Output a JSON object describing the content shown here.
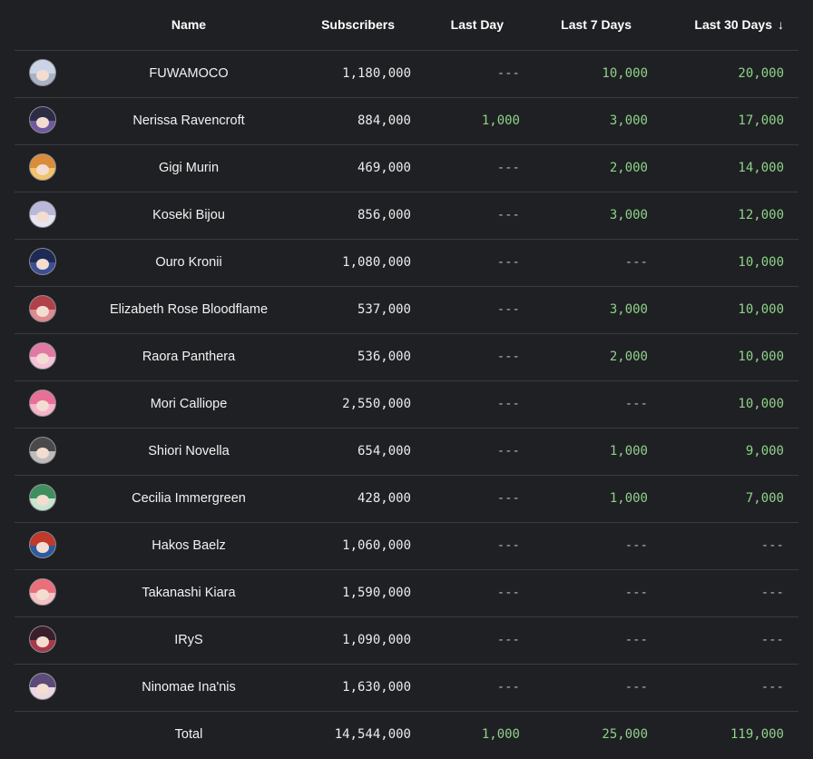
{
  "header": {
    "name": "Name",
    "subscribers": "Subscribers",
    "last_day": "Last Day",
    "last_7_days": "Last 7 Days",
    "last_30_days": "Last 30 Days",
    "sort_icon": "arrow-down-icon"
  },
  "colors": {
    "background": "#1f2023",
    "positive": "#8fd18b",
    "divider": "#3a3b3f"
  },
  "rows": [
    {
      "name": "FUWAMOCO",
      "subscribers": "1,180,000",
      "last_day": "---",
      "last_7_days": "10,000",
      "last_30_days": "20,000"
    },
    {
      "name": "Nerissa Ravencroft",
      "subscribers": "884,000",
      "last_day": "1,000",
      "last_7_days": "3,000",
      "last_30_days": "17,000"
    },
    {
      "name": "Gigi Murin",
      "subscribers": "469,000",
      "last_day": "---",
      "last_7_days": "2,000",
      "last_30_days": "14,000"
    },
    {
      "name": "Koseki Bijou",
      "subscribers": "856,000",
      "last_day": "---",
      "last_7_days": "3,000",
      "last_30_days": "12,000"
    },
    {
      "name": "Ouro Kronii",
      "subscribers": "1,080,000",
      "last_day": "---",
      "last_7_days": "---",
      "last_30_days": "10,000"
    },
    {
      "name": "Elizabeth Rose Bloodflame",
      "subscribers": "537,000",
      "last_day": "---",
      "last_7_days": "3,000",
      "last_30_days": "10,000"
    },
    {
      "name": "Raora Panthera",
      "subscribers": "536,000",
      "last_day": "---",
      "last_7_days": "2,000",
      "last_30_days": "10,000"
    },
    {
      "name": "Mori Calliope",
      "subscribers": "2,550,000",
      "last_day": "---",
      "last_7_days": "---",
      "last_30_days": "10,000"
    },
    {
      "name": "Shiori Novella",
      "subscribers": "654,000",
      "last_day": "---",
      "last_7_days": "1,000",
      "last_30_days": "9,000"
    },
    {
      "name": "Cecilia Immergreen",
      "subscribers": "428,000",
      "last_day": "---",
      "last_7_days": "1,000",
      "last_30_days": "7,000"
    },
    {
      "name": "Hakos Baelz",
      "subscribers": "1,060,000",
      "last_day": "---",
      "last_7_days": "---",
      "last_30_days": "---"
    },
    {
      "name": "Takanashi Kiara",
      "subscribers": "1,590,000",
      "last_day": "---",
      "last_7_days": "---",
      "last_30_days": "---"
    },
    {
      "name": "IRyS",
      "subscribers": "1,090,000",
      "last_day": "---",
      "last_7_days": "---",
      "last_30_days": "---"
    },
    {
      "name": "Ninomae Ina'nis",
      "subscribers": "1,630,000",
      "last_day": "---",
      "last_7_days": "---",
      "last_30_days": "---"
    }
  ],
  "total": {
    "label": "Total",
    "subscribers": "14,544,000",
    "last_day": "1,000",
    "last_7_days": "25,000",
    "last_30_days": "119,000"
  }
}
